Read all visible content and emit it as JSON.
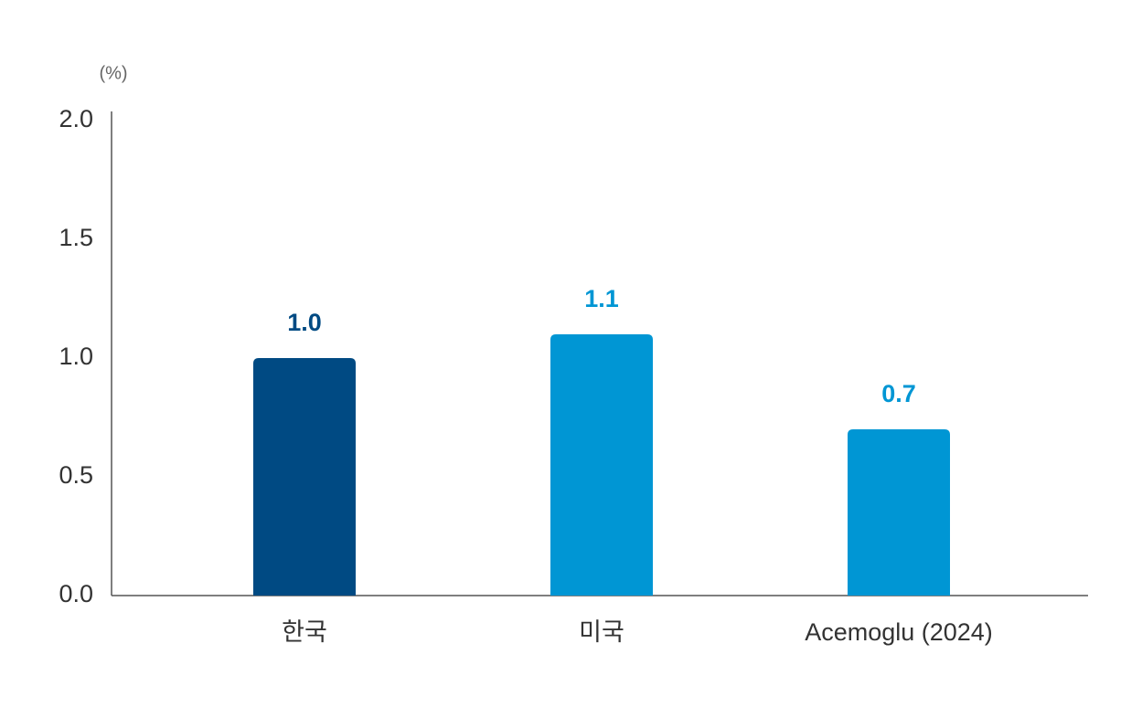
{
  "chart_data": {
    "type": "bar",
    "y_axis_label": "(%)",
    "categories": [
      "한국",
      "미국",
      "Acemoglu (2024)"
    ],
    "values": [
      1.0,
      1.1,
      0.7
    ],
    "value_labels": [
      "1.0",
      "1.1",
      "0.7"
    ],
    "colors": [
      "#004a83",
      "#0096d4",
      "#0096d4"
    ],
    "ylim": [
      0,
      2
    ],
    "yticks": [
      {
        "value": 0,
        "label": "0.0"
      },
      0.5,
      {
        "value": 1,
        "label": "1.0"
      },
      1.5,
      {
        "value": 2,
        "label": "2.0"
      }
    ],
    "grid": false
  }
}
